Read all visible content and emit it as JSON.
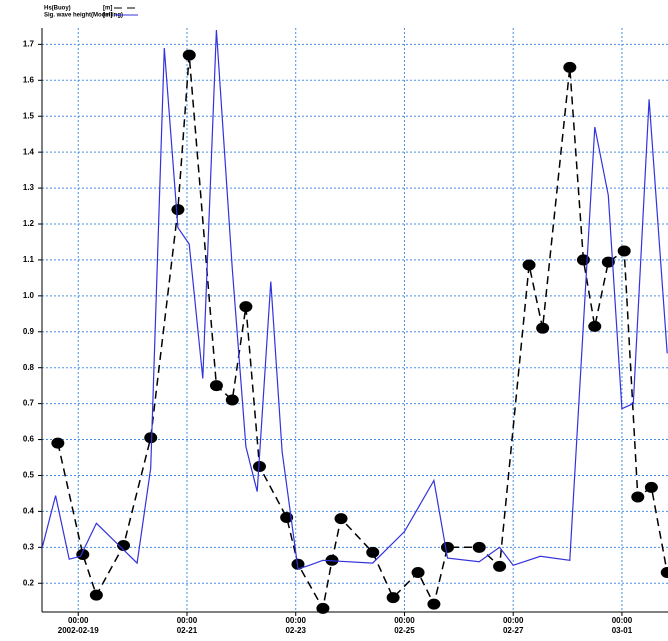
{
  "chart_data": {
    "type": "line",
    "xlim": [
      "2002-02-18T08:00",
      "2002-03-01T20:20"
    ],
    "ylim": [
      0.12,
      1.74
    ],
    "xticks": [
      {
        "value": "2002-02-19T00:00",
        "label": [
          "00:00",
          "2002-02-19"
        ]
      },
      {
        "value": "2002-02-21T00:00",
        "label": [
          "00:00",
          "02-21"
        ]
      },
      {
        "value": "2002-02-23T00:00",
        "label": [
          "00:00",
          "02-23"
        ]
      },
      {
        "value": "2002-02-25T00:00",
        "label": [
          "00:00",
          "02-25"
        ]
      },
      {
        "value": "2002-02-27T00:00",
        "label": [
          "00:00",
          "02-27"
        ]
      },
      {
        "value": "2002-03-01T00:00",
        "label": [
          "00:00",
          "03-01"
        ]
      }
    ],
    "yticks": [
      0.2,
      0.3,
      0.4,
      0.5,
      0.6,
      0.7,
      0.8,
      0.9,
      {
        "value": 1,
        "label": "1.0"
      },
      1.1,
      1.2,
      1.3,
      1.4,
      1.5,
      1.6,
      1.7
    ],
    "grid": true,
    "series": [
      {
        "name": "Hs(Buoy)",
        "unit": "[m]",
        "color": "#000000",
        "dash": "8,5",
        "marker": true,
        "x": [
          "2002-02-18T15:00",
          "2002-02-19T02:00",
          "2002-02-19T08:00",
          "2002-02-19T20:00",
          "2002-02-20T08:00",
          "2002-02-20T20:00",
          "2002-02-21T01:00",
          "2002-02-21T13:00",
          "2002-02-21T20:00",
          "2002-02-22T02:00",
          "2002-02-22T08:00",
          "2002-02-22T20:00",
          "2002-02-23T01:00",
          "2002-02-23T12:00",
          "2002-02-23T16:00",
          "2002-02-23T20:00",
          "2002-02-24T10:00",
          "2002-02-24T19:00",
          "2002-02-25T06:00",
          "2002-02-25T13:00",
          "2002-02-25T19:00",
          "2002-02-26T09:00",
          "2002-02-26T18:00",
          "2002-02-27T07:00",
          "2002-02-27T13:00",
          "2002-02-28T01:00",
          "2002-02-28T07:00",
          "2002-02-28T12:00",
          "2002-02-28T18:00",
          "2002-03-01T01:00",
          "2002-03-01T07:00",
          "2002-03-01T13:00",
          "2002-03-01T20:00"
        ],
        "values": [
          0.59,
          0.28,
          0.167,
          0.305,
          0.605,
          1.24,
          1.67,
          0.75,
          0.71,
          0.97,
          0.525,
          0.383,
          0.253,
          0.13,
          0.264,
          0.38,
          0.286,
          0.16,
          0.23,
          0.142,
          0.3,
          0.3,
          0.247,
          1.086,
          0.91,
          1.636,
          1.1,
          0.915,
          1.094,
          1.125,
          0.44,
          0.467,
          0.23
        ]
      },
      {
        "name": "Sig. wave height(Modelling)",
        "unit": "[m]",
        "color": "#3333dd",
        "dash": "",
        "marker": false,
        "x": [
          "2002-02-18T08:00",
          "2002-02-18T14:00",
          "2002-02-18T20:00",
          "2002-02-19T01:00",
          "2002-02-19T08:00",
          "2002-02-20T02:00",
          "2002-02-20T08:00",
          "2002-02-20T14:00",
          "2002-02-20T20:00",
          "2002-02-21T01:00",
          "2002-02-21T07:00",
          "2002-02-21T13:00",
          "2002-02-21T20:00",
          "2002-02-22T02:00",
          "2002-02-22T07:00",
          "2002-02-22T13:00",
          "2002-02-22T18:00",
          "2002-02-23T01:00",
          "2002-02-23T06:00",
          "2002-02-23T12:00",
          "2002-02-24T10:00",
          "2002-02-25T00:00",
          "2002-02-25T13:00",
          "2002-02-25T19:00",
          "2002-02-26T09:00",
          "2002-02-26T18:00",
          "2002-02-27T00:00",
          "2002-02-27T12:00",
          "2002-02-28T01:00",
          "2002-02-28T12:00",
          "2002-02-28T18:00",
          "2002-03-01T00:00",
          "2002-03-01T05:00",
          "2002-03-01T12:00",
          "2002-03-01T20:00"
        ],
        "values": [
          0.297,
          0.444,
          0.267,
          0.275,
          0.367,
          0.256,
          0.52,
          1.69,
          1.19,
          1.144,
          0.77,
          1.74,
          1.075,
          0.58,
          0.455,
          1.04,
          0.567,
          0.24,
          0.25,
          0.264,
          0.256,
          0.344,
          0.486,
          0.27,
          0.26,
          0.3,
          0.25,
          0.275,
          0.264,
          1.47,
          1.28,
          0.686,
          0.7,
          1.547,
          0.84
        ]
      }
    ]
  }
}
